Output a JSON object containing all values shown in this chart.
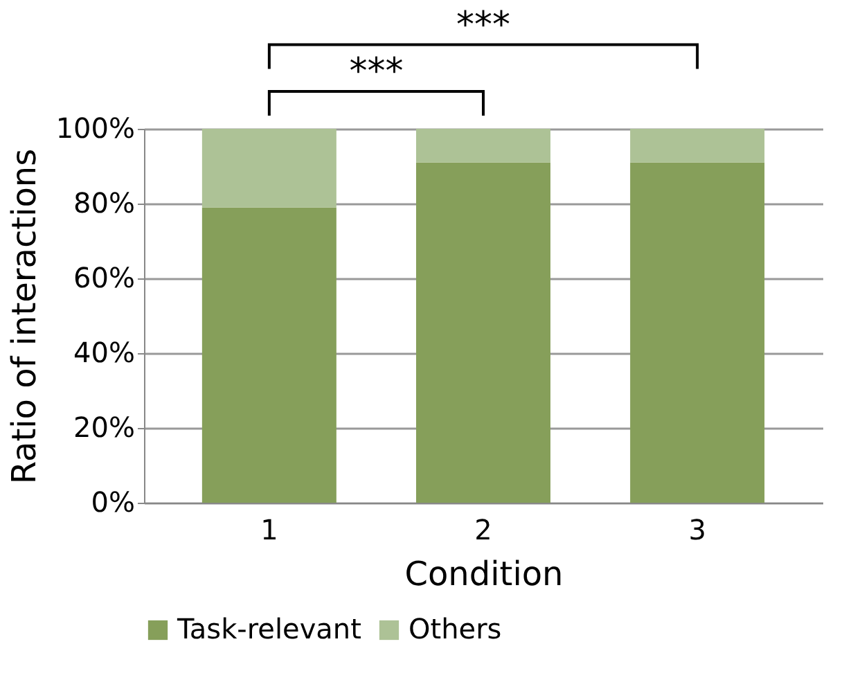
{
  "chart_data": {
    "type": "bar",
    "stacked": true,
    "xlabel": "Condition",
    "ylabel": "Ratio of interactions",
    "categories": [
      "1",
      "2",
      "3"
    ],
    "series": [
      {
        "name": "Task-relevant",
        "color": "#869f5a",
        "values": [
          79,
          91,
          91
        ]
      },
      {
        "name": "Others",
        "color": "#adc296",
        "values": [
          21,
          9,
          9
        ]
      }
    ],
    "ylim": [
      0,
      100
    ],
    "yticks": [
      {
        "value": 0,
        "label": "0%"
      },
      {
        "value": 20,
        "label": "20%"
      },
      {
        "value": 40,
        "label": "40%"
      },
      {
        "value": 60,
        "label": "60%"
      },
      {
        "value": 80,
        "label": "80%"
      },
      {
        "value": 100,
        "label": "100%"
      }
    ],
    "grid": "y",
    "legend": "bottom",
    "annotations": [
      "***",
      "***"
    ]
  }
}
